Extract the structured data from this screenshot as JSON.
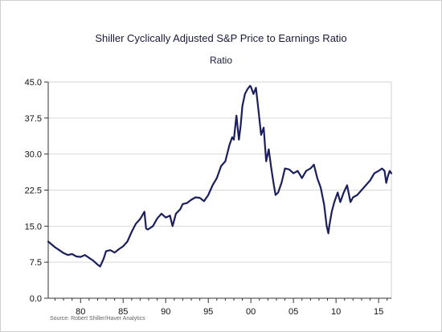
{
  "chart_data": {
    "type": "line",
    "title": "Shiller Cyclically Adjusted S&P Price to Earnings Ratio",
    "subtitle": "Ratio",
    "source": "Source: Robert Shiller/Haver Analytics",
    "xlabel": "",
    "ylabel": "",
    "xlim": [
      1976.2,
      2016.5
    ],
    "ylim": [
      0,
      45
    ],
    "yticks": [
      "0.0",
      "7.5",
      "15.0",
      "22.5",
      "30.0",
      "37.5",
      "45.0"
    ],
    "yticks_values": [
      0,
      7.5,
      15,
      22.5,
      30,
      37.5,
      45
    ],
    "xticks": [
      "80",
      "85",
      "90",
      "95",
      "00",
      "05",
      "10",
      "15"
    ],
    "xticks_values": [
      1980,
      1985,
      1990,
      1995,
      2000,
      2005,
      2010,
      2015
    ],
    "grid": true,
    "line_color": "#1b1f5c",
    "series": [
      {
        "name": "",
        "x": [
          1976.2,
          1976.6,
          1977.0,
          1977.5,
          1978.0,
          1978.5,
          1979.0,
          1979.5,
          1980.0,
          1980.5,
          1981.0,
          1981.5,
          1982.0,
          1982.3,
          1982.7,
          1983.0,
          1983.5,
          1984.0,
          1984.5,
          1985.0,
          1985.5,
          1986.0,
          1986.5,
          1987.0,
          1987.5,
          1987.7,
          1987.9,
          1988.5,
          1989.0,
          1989.5,
          1990.0,
          1990.5,
          1990.8,
          1991.2,
          1991.7,
          1992.0,
          1992.5,
          1993.0,
          1993.5,
          1994.0,
          1994.5,
          1995.0,
          1995.5,
          1996.0,
          1996.5,
          1997.0,
          1997.5,
          1997.8,
          1998.0,
          1998.3,
          1998.6,
          1998.8,
          1999.0,
          1999.3,
          1999.6,
          1999.9,
          2000.0,
          2000.3,
          2000.6,
          2000.9,
          2001.2,
          2001.5,
          2001.8,
          2002.1,
          2002.4,
          2002.7,
          2002.9,
          2003.2,
          2003.6,
          2004.0,
          2004.5,
          2005.0,
          2005.5,
          2006.0,
          2006.5,
          2007.0,
          2007.4,
          2007.8,
          2008.2,
          2008.6,
          2008.9,
          2009.1,
          2009.2,
          2009.5,
          2009.8,
          2010.2,
          2010.5,
          2010.9,
          2011.3,
          2011.7,
          2012.0,
          2012.5,
          2013.0,
          2013.5,
          2014.0,
          2014.5,
          2015.0,
          2015.4,
          2015.7,
          2015.9,
          2016.1,
          2016.3,
          2016.5
        ],
        "values": [
          11.8,
          11.2,
          10.6,
          10.0,
          9.4,
          9.0,
          9.2,
          8.7,
          8.6,
          9.0,
          8.4,
          7.8,
          7.0,
          6.6,
          8.2,
          9.8,
          10.0,
          9.5,
          10.2,
          10.8,
          11.8,
          13.8,
          15.5,
          16.5,
          18.0,
          14.5,
          14.3,
          15.0,
          16.6,
          17.6,
          16.8,
          17.2,
          15.0,
          17.6,
          18.5,
          19.6,
          19.8,
          20.5,
          21.0,
          20.9,
          20.2,
          21.5,
          23.5,
          25.0,
          27.5,
          28.5,
          32.0,
          33.5,
          33.0,
          38.0,
          33.0,
          36.0,
          40.0,
          42.5,
          43.5,
          44.2,
          44.0,
          42.5,
          43.8,
          39.0,
          34.0,
          35.5,
          28.5,
          31.0,
          27.0,
          23.5,
          21.5,
          22.0,
          24.0,
          27.0,
          26.8,
          26.0,
          26.5,
          25.0,
          26.5,
          27.0,
          27.8,
          25.0,
          23.0,
          19.5,
          15.0,
          13.5,
          15.0,
          18.0,
          20.0,
          22.0,
          20.0,
          22.0,
          23.5,
          20.0,
          21.0,
          21.5,
          22.5,
          23.5,
          24.5,
          26.0,
          26.5,
          27.0,
          26.5,
          24.0,
          25.5,
          26.5,
          26.0
        ]
      }
    ]
  }
}
